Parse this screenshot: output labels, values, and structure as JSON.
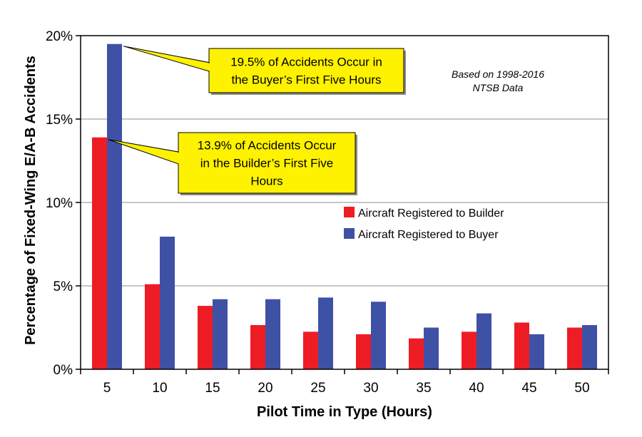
{
  "chart_data": {
    "type": "bar",
    "categories": [
      "5",
      "10",
      "15",
      "20",
      "25",
      "30",
      "35",
      "40",
      "45",
      "50"
    ],
    "series": [
      {
        "name": "Aircraft Registered to Builder",
        "color": "#ee1c24",
        "values": [
          13.9,
          5.1,
          3.8,
          2.65,
          2.25,
          2.1,
          1.85,
          2.25,
          2.8,
          2.5
        ]
      },
      {
        "name": "Aircraft Registered to Buyer",
        "color": "#3f51a5",
        "values": [
          19.5,
          7.95,
          4.2,
          4.2,
          4.3,
          4.05,
          2.5,
          3.35,
          2.1,
          2.65
        ]
      }
    ],
    "xlabel": "Pilot Time in Type (Hours)",
    "ylabel": "Percentage of Fixed-Wing E/A-B Accidents",
    "ylim": [
      0,
      20
    ],
    "yticks": [
      "0%",
      "5%",
      "10%",
      "15%",
      "20%"
    ],
    "ytick_values": [
      0,
      5,
      10,
      15,
      20
    ],
    "grid": true,
    "legend_placement": "right",
    "annotations": [
      {
        "lines": [
          "19.5% of Accidents Occur in",
          "the Buyer’s First Five Hours"
        ],
        "category": "5",
        "series": 1,
        "value": 19.5
      },
      {
        "lines": [
          "13.9% of Accidents Occur",
          "in the Builder’s First Five",
          "Hours"
        ],
        "category": "5",
        "series": 0,
        "value": 13.9
      }
    ],
    "note": [
      "Based on 1998-2016",
      "NTSB Data"
    ],
    "callout_color": "#fff200"
  }
}
